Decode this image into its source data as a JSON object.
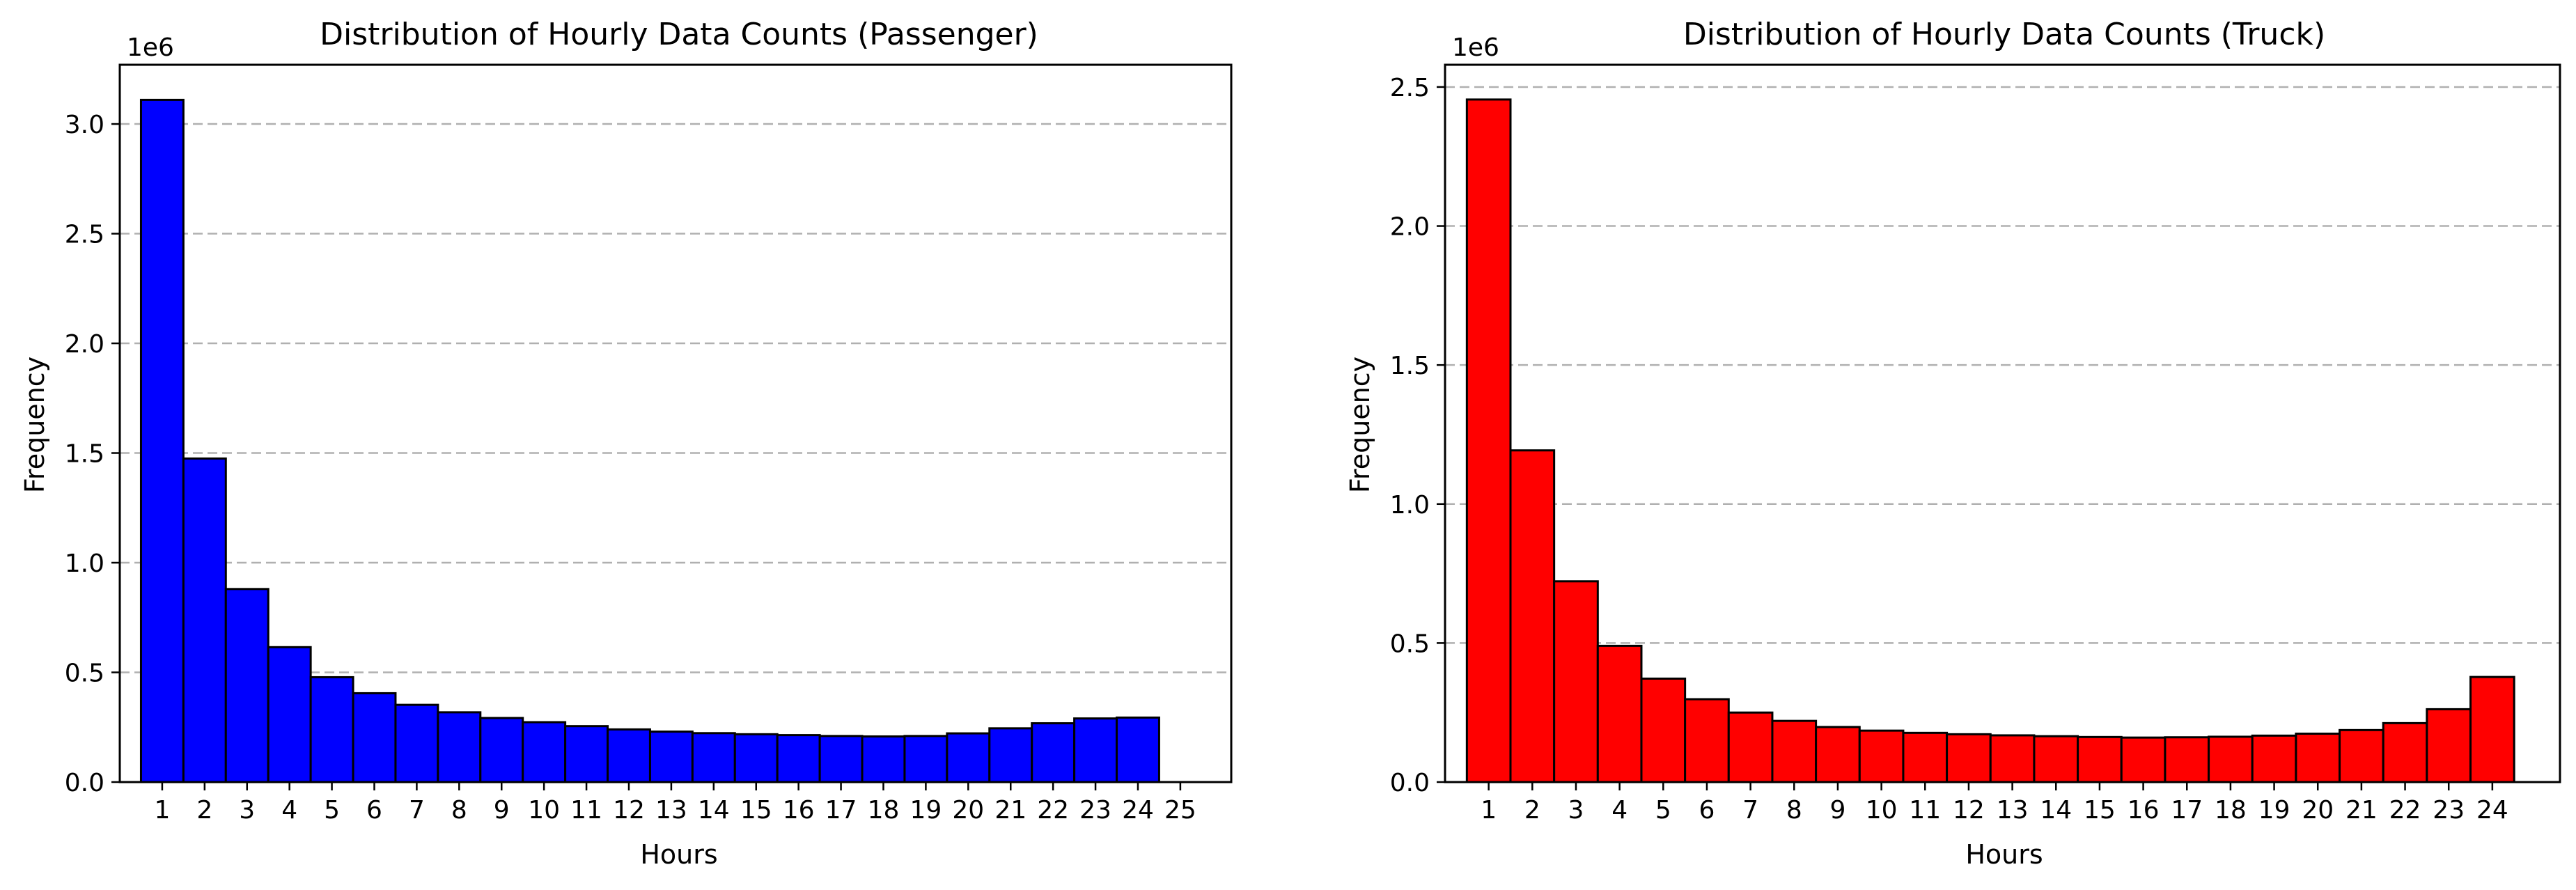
{
  "chart_data": [
    {
      "type": "bar",
      "title": "Distribution of Hourly Data Counts (Passenger)",
      "xlabel": "Hours",
      "ylabel": "Frequency",
      "y_offset_label": "1e6",
      "color": "#0000ff",
      "edge_color": "#000000",
      "grid": "y-dashed",
      "categories": [
        "1",
        "2",
        "3",
        "4",
        "5",
        "6",
        "7",
        "8",
        "9",
        "10",
        "11",
        "12",
        "13",
        "14",
        "15",
        "16",
        "17",
        "18",
        "19",
        "20",
        "21",
        "22",
        "23",
        "24"
      ],
      "x_tick_labels": [
        "1",
        "2",
        "3",
        "4",
        "5",
        "6",
        "7",
        "8",
        "9",
        "10",
        "11",
        "12",
        "13",
        "14",
        "15",
        "16",
        "17",
        "18",
        "19",
        "20",
        "21",
        "22",
        "23",
        "24",
        "25"
      ],
      "values": [
        3110000,
        1475000,
        880000,
        615000,
        478000,
        405000,
        352000,
        318000,
        292000,
        273000,
        255000,
        240000,
        230000,
        223000,
        218000,
        214000,
        210000,
        208000,
        210000,
        222000,
        245000,
        268000,
        290000,
        294000
      ],
      "xlim": [
        0,
        26.2
      ],
      "ylim": [
        0,
        3270000
      ],
      "y_ticks": [
        0,
        500000,
        1000000,
        1500000,
        2000000,
        2500000,
        3000000
      ],
      "y_tick_labels": [
        "0.0",
        "0.5",
        "1.0",
        "1.5",
        "2.0",
        "2.5",
        "3.0"
      ]
    },
    {
      "type": "bar",
      "title": "Distribution of Hourly Data Counts (Truck)",
      "xlabel": "Hours",
      "ylabel": "Frequency",
      "y_offset_label": "1e6",
      "color": "#ff0000",
      "edge_color": "#000000",
      "grid": "y-dashed",
      "categories": [
        "1",
        "2",
        "3",
        "4",
        "5",
        "6",
        "7",
        "8",
        "9",
        "10",
        "11",
        "12",
        "13",
        "14",
        "15",
        "16",
        "17",
        "18",
        "19",
        "20",
        "21",
        "22",
        "23",
        "24"
      ],
      "x_tick_labels": [
        "1",
        "2",
        "3",
        "4",
        "5",
        "6",
        "7",
        "8",
        "9",
        "10",
        "11",
        "12",
        "13",
        "14",
        "15",
        "16",
        "17",
        "18",
        "19",
        "20",
        "21",
        "22",
        "23",
        "24"
      ],
      "values": [
        2455000,
        1193000,
        722000,
        490000,
        372000,
        298000,
        250000,
        220000,
        198000,
        185000,
        177000,
        172000,
        168000,
        165000,
        162000,
        160000,
        161000,
        163000,
        167000,
        174000,
        187000,
        212000,
        262000,
        378000
      ],
      "xlim": [
        0,
        25.55
      ],
      "ylim": [
        0,
        2580000
      ],
      "y_ticks": [
        0,
        500000,
        1000000,
        1500000,
        2000000,
        2500000
      ],
      "y_tick_labels": [
        "0.0",
        "0.5",
        "1.0",
        "1.5",
        "2.0",
        "2.5"
      ]
    }
  ]
}
